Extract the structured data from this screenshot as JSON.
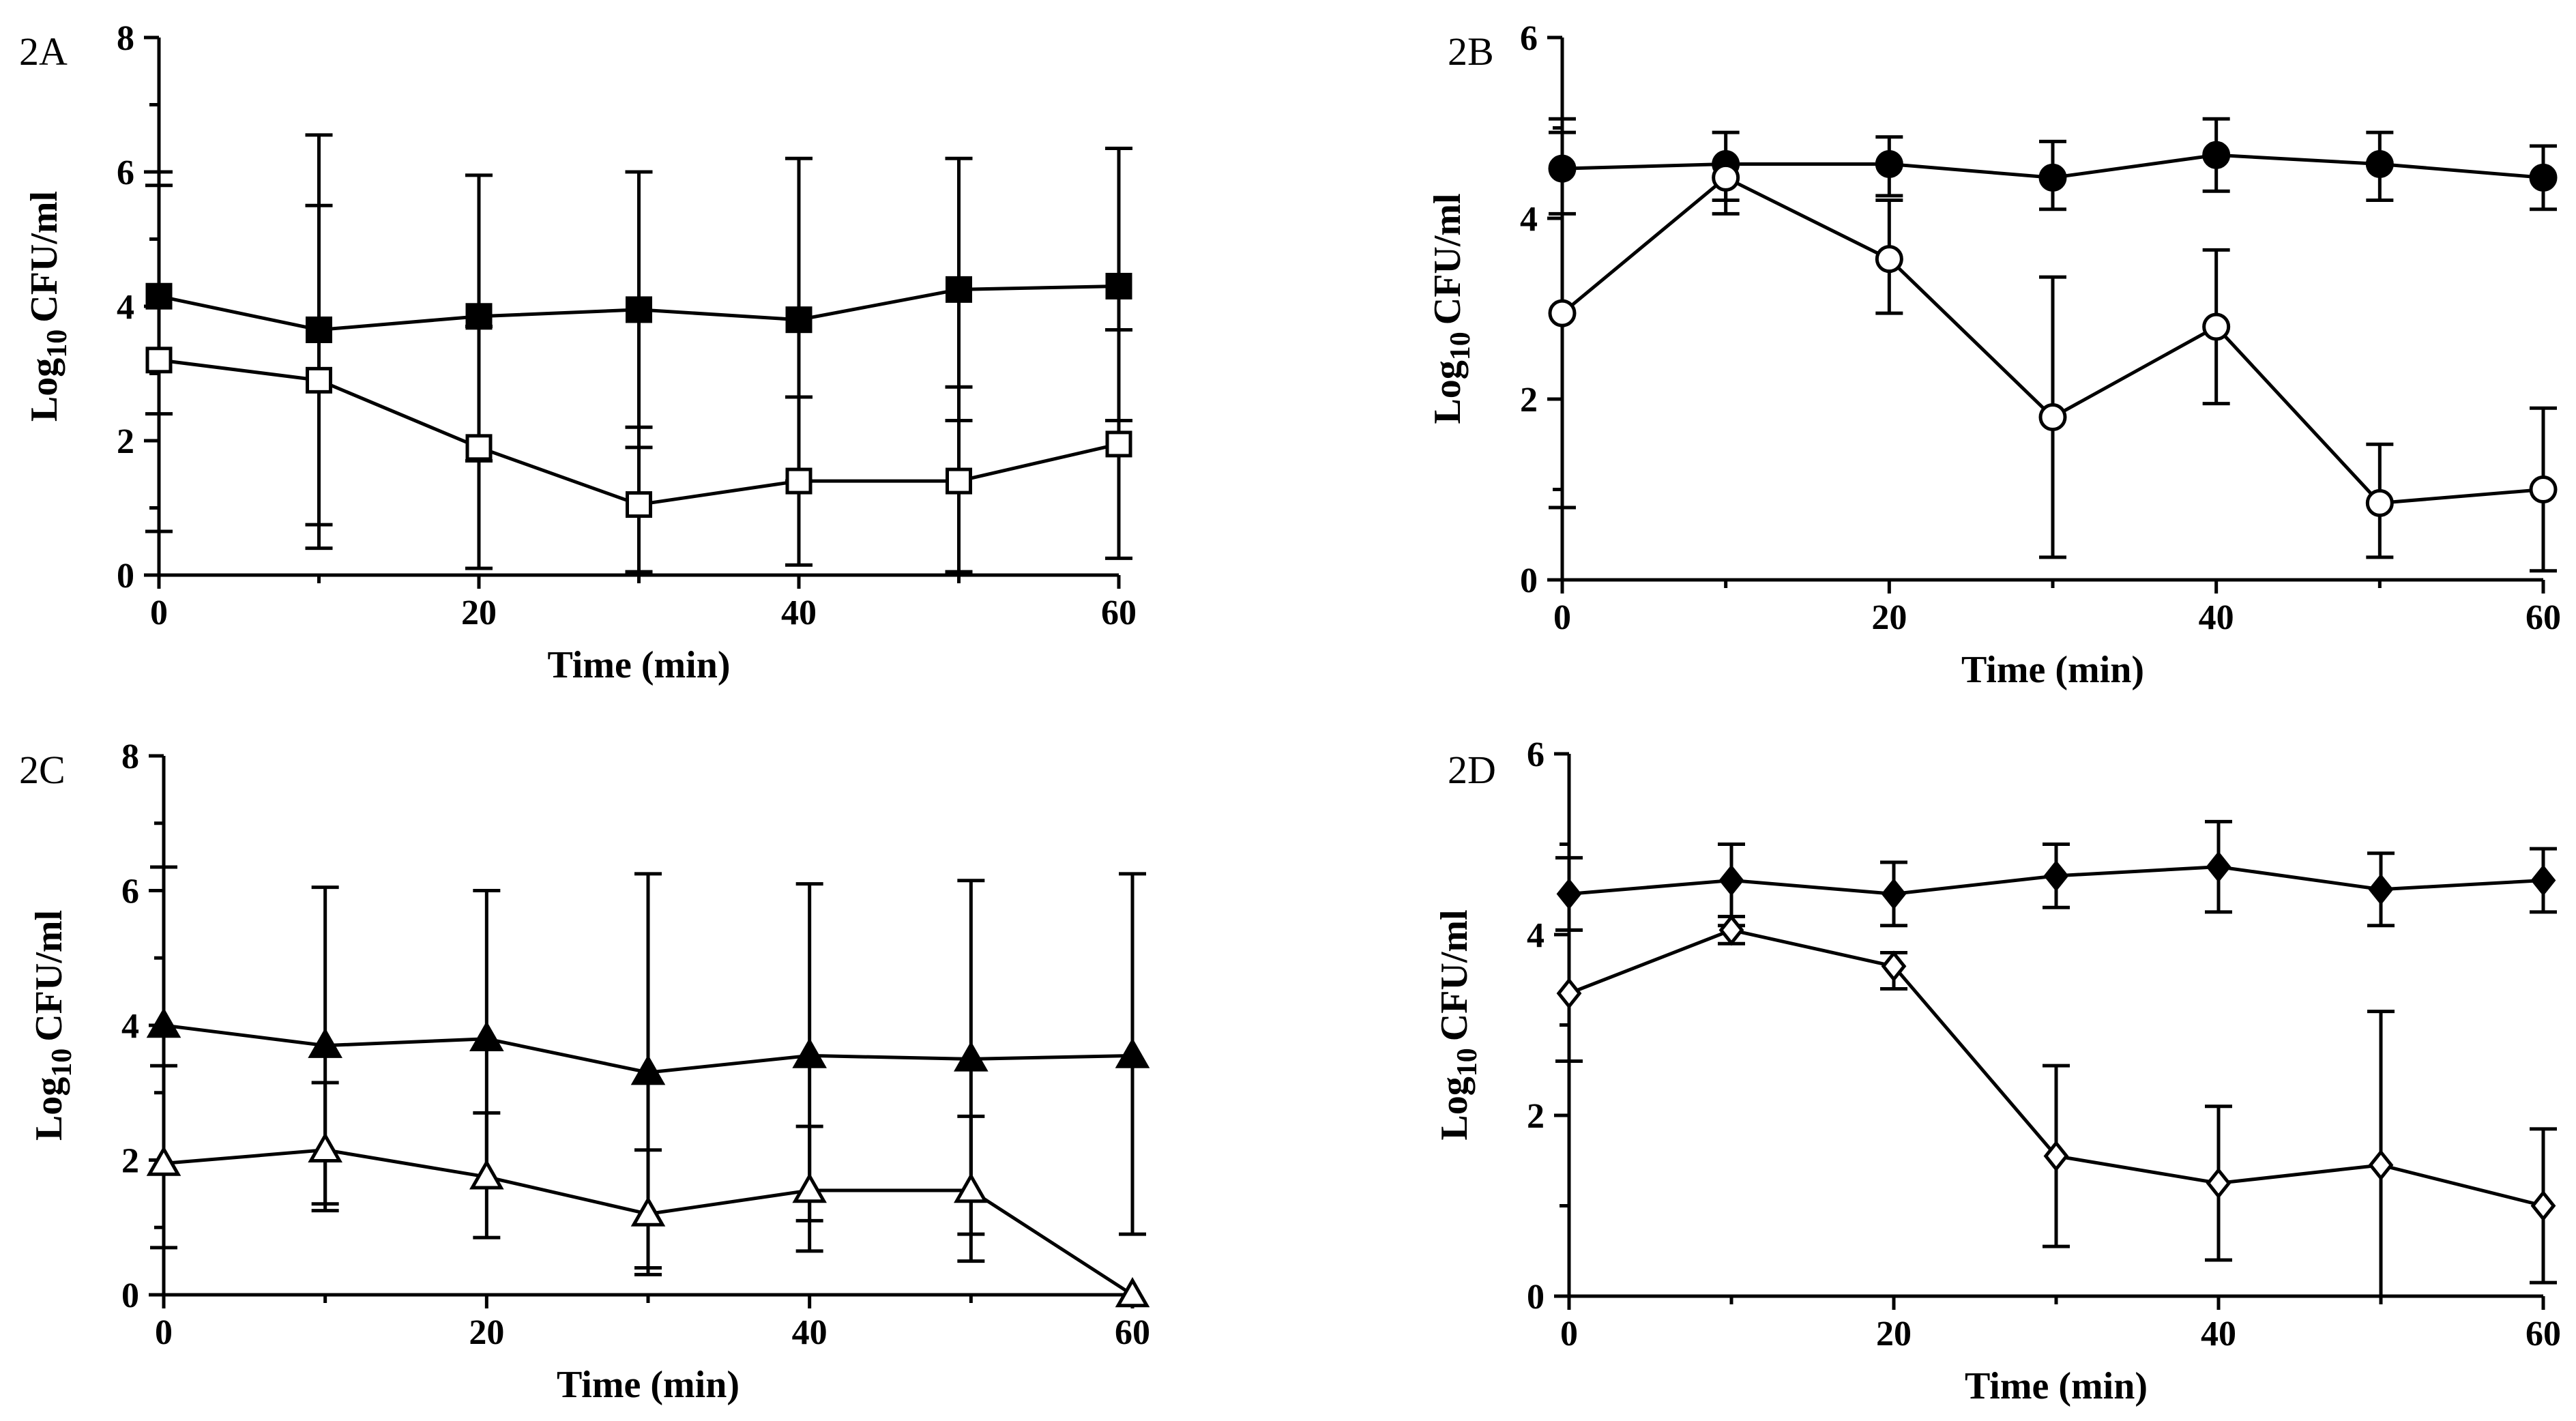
{
  "chart_data": [
    {
      "panel": "2A",
      "type": "line",
      "xlabel": "Time (min)",
      "ylabel": "CFU/ml",
      "ylabel_prefix": "Log",
      "ylabel_sub": "10",
      "xlim": [
        0,
        60
      ],
      "ylim": [
        0,
        8
      ],
      "xticks": [
        "0",
        "20",
        "40",
        "60"
      ],
      "yticks": [
        "0",
        "2",
        "4",
        "6",
        "8"
      ],
      "x": [
        0,
        10,
        20,
        30,
        40,
        50,
        60
      ],
      "series": [
        {
          "marker": "square-filled",
          "values": [
            4.15,
            3.65,
            3.85,
            3.95,
            3.8,
            4.25,
            4.3
          ],
          "err_upper": [
            5.8,
            6.55,
            5.95,
            6.0,
            6.2,
            6.2,
            6.35
          ],
          "err_lower": [
            2.4,
            0.75,
            1.7,
            1.9,
            1.4,
            2.3,
            2.3
          ]
        },
        {
          "marker": "square-open",
          "values": [
            3.2,
            2.9,
            1.9,
            1.05,
            1.4,
            1.4,
            1.95
          ],
          "err_upper": [
            6.0,
            5.5,
            3.7,
            2.2,
            2.65,
            2.8,
            3.65
          ],
          "err_lower": [
            0.65,
            0.4,
            0.1,
            0.05,
            0.15,
            0.05,
            0.25
          ]
        }
      ]
    },
    {
      "panel": "2B",
      "type": "line",
      "xlabel": "Time (min)",
      "ylabel": "CFU/ml",
      "ylabel_prefix": "Log",
      "ylabel_sub": "10",
      "xlim": [
        0,
        60
      ],
      "ylim": [
        0,
        6
      ],
      "xticks": [
        "0",
        "20",
        "40",
        "60"
      ],
      "yticks": [
        "0",
        "2",
        "4",
        "6"
      ],
      "x": [
        0,
        10,
        20,
        30,
        40,
        50,
        60
      ],
      "series": [
        {
          "marker": "circle-filled",
          "values": [
            4.55,
            4.6,
            4.6,
            4.45,
            4.7,
            4.6,
            4.45
          ],
          "err_upper": [
            5.1,
            4.95,
            4.9,
            4.85,
            5.1,
            4.95,
            4.8
          ],
          "err_lower": [
            4.05,
            4.2,
            4.25,
            4.1,
            4.3,
            4.2,
            4.1
          ]
        },
        {
          "marker": "circle-open",
          "values": [
            2.95,
            4.45,
            3.55,
            1.8,
            2.8,
            0.85,
            1.0
          ],
          "err_upper": [
            4.95,
            4.6,
            4.2,
            3.35,
            3.65,
            1.5,
            1.9
          ],
          "err_lower": [
            0.8,
            4.05,
            2.95,
            0.25,
            1.95,
            0.25,
            0.1
          ]
        }
      ]
    },
    {
      "panel": "2C",
      "type": "line",
      "xlabel": "Time (min)",
      "ylabel": "CFU/ml",
      "ylabel_prefix": "Log",
      "ylabel_sub": "10",
      "xlim": [
        0,
        60
      ],
      "ylim": [
        0,
        8
      ],
      "xticks": [
        "0",
        "20",
        "40",
        "60"
      ],
      "yticks": [
        "0",
        "2",
        "4",
        "6",
        "8"
      ],
      "x": [
        0,
        10,
        20,
        30,
        40,
        50,
        60
      ],
      "series": [
        {
          "marker": "triangle-filled",
          "values": [
            4.0,
            3.7,
            3.8,
            3.3,
            3.55,
            3.5,
            3.55
          ],
          "err_upper": [
            6.35,
            6.05,
            6.0,
            6.25,
            6.1,
            6.15,
            6.25
          ],
          "err_lower": [
            1.8,
            1.35,
            1.6,
            0.4,
            1.1,
            0.9,
            0.9
          ]
        },
        {
          "marker": "triangle-open",
          "values": [
            1.95,
            2.15,
            1.75,
            1.2,
            1.55,
            1.55,
            0.0
          ],
          "err_upper": [
            3.4,
            3.15,
            2.7,
            2.15,
            2.5,
            2.65,
            0.0
          ],
          "err_lower": [
            0.7,
            1.25,
            0.85,
            0.3,
            0.65,
            0.5,
            0.0
          ]
        }
      ]
    },
    {
      "panel": "2D",
      "type": "line",
      "xlabel": "Time (min)",
      "ylabel": "CFU/ml",
      "ylabel_prefix": "Log",
      "ylabel_sub": "10",
      "xlim": [
        0,
        60
      ],
      "ylim": [
        0,
        6
      ],
      "xticks": [
        "0",
        "20",
        "40",
        "60"
      ],
      "yticks": [
        "0",
        "2",
        "4",
        "6"
      ],
      "x": [
        0,
        10,
        20,
        30,
        40,
        50,
        60
      ],
      "series": [
        {
          "marker": "diamond-filled",
          "values": [
            4.45,
            4.6,
            4.45,
            4.65,
            4.75,
            4.5,
            4.6
          ],
          "err_upper": [
            4.85,
            5.0,
            4.8,
            5.0,
            5.25,
            4.9,
            4.95
          ],
          "err_lower": [
            4.05,
            4.2,
            4.1,
            4.3,
            4.25,
            4.1,
            4.25
          ]
        },
        {
          "marker": "diamond-open",
          "values": [
            3.35,
            4.05,
            3.65,
            1.55,
            1.25,
            1.45,
            1.0
          ],
          "err_upper": [
            4.05,
            4.1,
            3.8,
            2.55,
            2.1,
            3.15,
            1.85
          ],
          "err_lower": [
            2.6,
            3.9,
            3.4,
            0.55,
            0.4,
            0.0,
            0.15
          ]
        }
      ]
    }
  ]
}
